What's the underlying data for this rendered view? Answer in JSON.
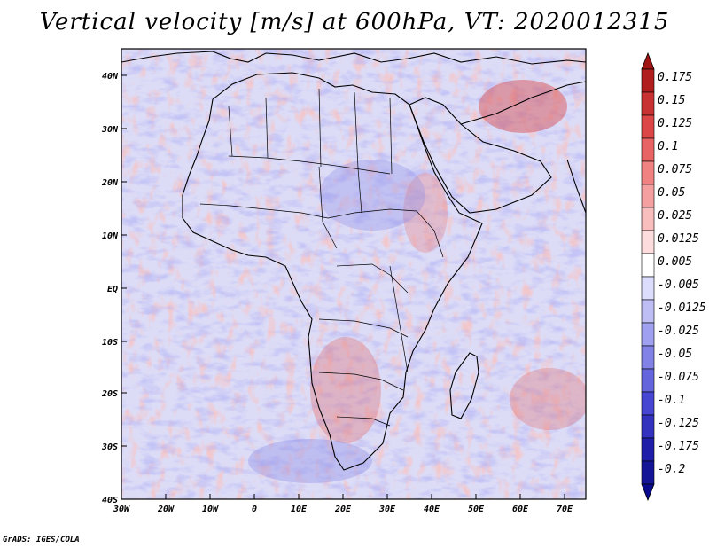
{
  "title": "Vertical velocity [m/s] at 600hPa, VT: 2020012315",
  "credit": "GrADS: IGES/COLA",
  "map": {
    "region": "Africa",
    "lon_range": [
      -30,
      75
    ],
    "lat_range": [
      -40,
      45
    ],
    "lat_ticks": [
      "40N",
      "30N",
      "20N",
      "10N",
      "EQ",
      "10S",
      "20S",
      "30S",
      "40S"
    ],
    "lon_ticks": [
      "30W",
      "20W",
      "10W",
      "0",
      "10E",
      "20E",
      "30E",
      "40E",
      "50E",
      "60E",
      "70E"
    ],
    "variable": "vertical velocity",
    "level": "600hPa",
    "valid_time": "2020012315"
  },
  "colorbar": {
    "levels": [
      {
        "label": "0.175",
        "color": "#b01e1e"
      },
      {
        "label": "0.15",
        "color": "#c83232"
      },
      {
        "label": "0.125",
        "color": "#dc4646"
      },
      {
        "label": "0.1",
        "color": "#e86464"
      },
      {
        "label": "0.075",
        "color": "#f08282"
      },
      {
        "label": "0.05",
        "color": "#f5a0a0"
      },
      {
        "label": "0.025",
        "color": "#f8bebe"
      },
      {
        "label": "0.0125",
        "color": "#fcdcdc"
      },
      {
        "label": "0.005",
        "color": "#ffffff"
      },
      {
        "label": "-0.005",
        "color": "#dcdcfc"
      },
      {
        "label": "-0.0125",
        "color": "#bebef5"
      },
      {
        "label": "-0.025",
        "color": "#a0a0f0"
      },
      {
        "label": "-0.05",
        "color": "#8282e6"
      },
      {
        "label": "-0.075",
        "color": "#6464dc"
      },
      {
        "label": "-0.1",
        "color": "#4646d2"
      },
      {
        "label": "-0.125",
        "color": "#3232be"
      },
      {
        "label": "-0.175",
        "color": "#1e1ea8"
      },
      {
        "label": "-0.2",
        "color": "#141496"
      }
    ],
    "top_extension_color": "#a01414",
    "bottom_extension_color": "#0a0a8c"
  }
}
